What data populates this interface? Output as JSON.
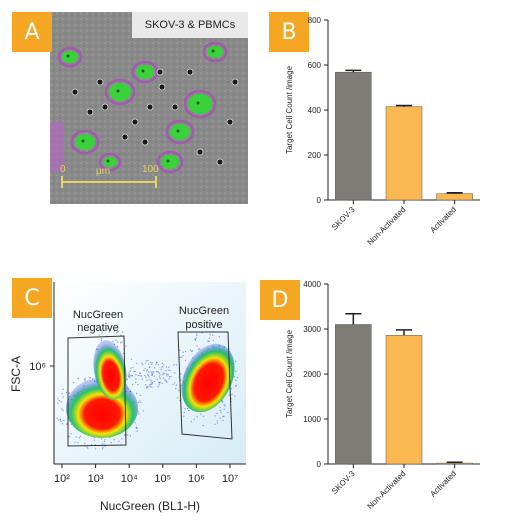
{
  "panels": {
    "A": {
      "badge": "A",
      "caption": "SKOV-3 & PBMCs",
      "scale_start": "0",
      "scale_unit": "µm",
      "scale_end": "100"
    },
    "B": {
      "badge": "B"
    },
    "C": {
      "badge": "C",
      "gate_neg": [
        "NucGreen",
        "negative"
      ],
      "gate_pos": [
        "NucGreen",
        "positive"
      ],
      "ylabel": "FSC-A",
      "y_tick": "10⁶",
      "xlabel": "NucGreen (BL1-H)",
      "x_ticks": [
        "10²",
        "10³",
        "10⁴",
        "10⁵",
        "10⁶",
        "10⁷"
      ]
    },
    "D": {
      "badge": "D"
    }
  },
  "colors": {
    "badge": "#f5a623",
    "gray_bar": "#7d7d76",
    "orange_bar": "#fbb852"
  },
  "chart_data": [
    {
      "type": "bar",
      "panel": "B",
      "categories": [
        "SKOV-3",
        "Non-Activated",
        "Activated"
      ],
      "values": [
        568,
        415,
        28
      ],
      "errors": [
        8,
        5,
        4
      ],
      "bar_colors": [
        "#7d7d76",
        "#fbb852",
        "#fbb852"
      ],
      "ylabel": "Target Cell Count /image",
      "ylim": [
        0,
        800
      ],
      "yticks": [
        0,
        200,
        400,
        600,
        800
      ]
    },
    {
      "type": "bar",
      "panel": "D",
      "categories": [
        "SKOV-3",
        "Non-Activated",
        "Activated"
      ],
      "values": [
        3100,
        2860,
        20
      ],
      "errors": [
        240,
        120,
        20
      ],
      "bar_colors": [
        "#7d7d76",
        "#fbb852",
        "#fbb852"
      ],
      "ylabel": "Target Cell Count /image",
      "ylim": [
        0,
        4000
      ],
      "yticks": [
        0,
        1000,
        2000,
        3000,
        4000
      ]
    }
  ]
}
